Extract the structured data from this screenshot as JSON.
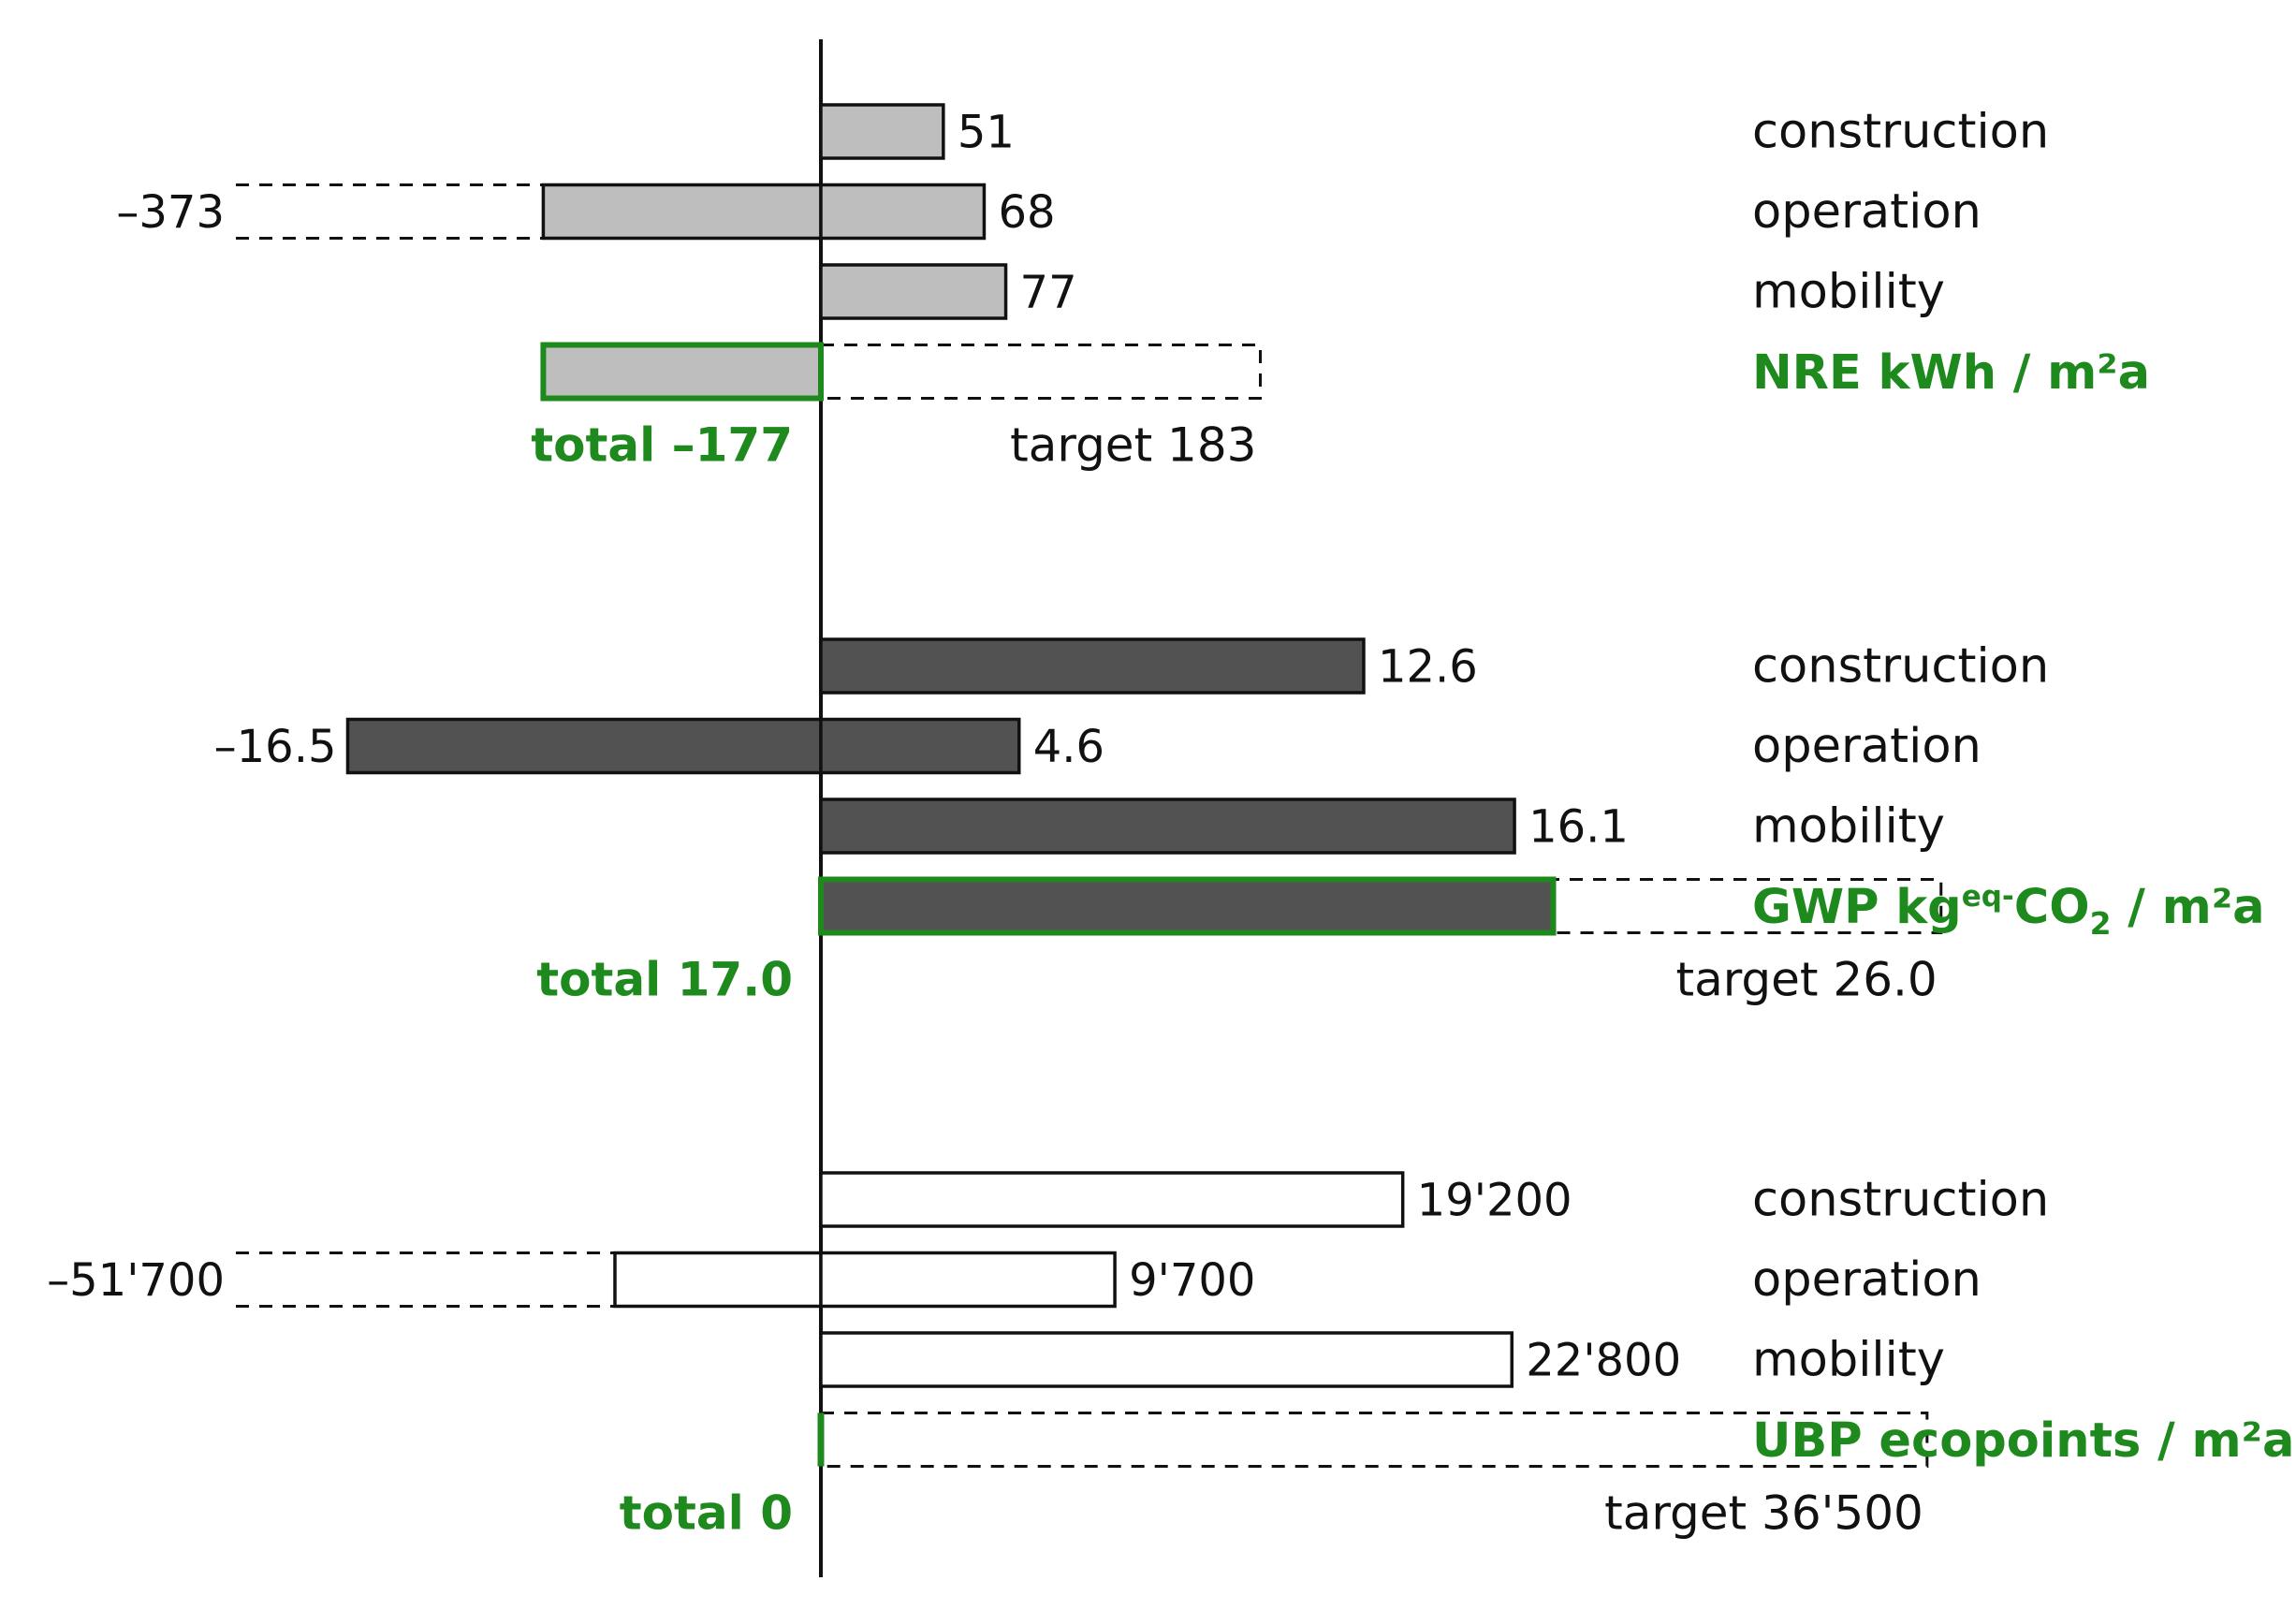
{
  "colors": {
    "nre_fill": "#bebebe",
    "gwp_fill": "#525252",
    "ubp_fill": "#ffffff",
    "stroke": "#111111",
    "accent_green": "#1e8a1e"
  },
  "chart_data": [
    {
      "type": "bar",
      "orientation": "horizontal",
      "unit_label": "NRE kWh / m²a",
      "categories": [
        "construction",
        "operation",
        "mobility"
      ],
      "values": [
        51,
        68,
        77
      ],
      "value_labels": [
        "51",
        "68",
        "77"
      ],
      "negative": {
        "category": "operation",
        "value": -373,
        "label": "–373",
        "bar_extent_value": -177
      },
      "total": {
        "value": -177,
        "label": "total –177"
      },
      "target": {
        "value": 183,
        "label": "target 183"
      },
      "xlim": [
        -373,
        366
      ]
    },
    {
      "type": "bar",
      "orientation": "horizontal",
      "unit_label": "GWP kgeq-CO2 / m²a",
      "unit_label_parts": {
        "prefix": "GWP kg",
        "sup": "eq-",
        "mid": "CO",
        "sub": "2",
        "suffix": " / m²a"
      },
      "categories": [
        "construction",
        "operation",
        "mobility"
      ],
      "values": [
        12.6,
        4.6,
        16.1
      ],
      "value_labels": [
        "12.6",
        "4.6",
        "16.1"
      ],
      "negative": {
        "category": "operation",
        "value": -16.5,
        "label": "–16.5",
        "bar_extent_value": -16.5
      },
      "total": {
        "value": 17.0,
        "label": "total 17.0"
      },
      "target": {
        "value": 26.0,
        "label": "target 26.0"
      },
      "xlim": [
        -20.4,
        20.4
      ]
    },
    {
      "type": "bar",
      "orientation": "horizontal",
      "unit_label": "UBP ecopoints / m²a",
      "categories": [
        "construction",
        "operation",
        "mobility"
      ],
      "values": [
        19200,
        9700,
        22800
      ],
      "value_labels": [
        "19'200",
        "9'700",
        "22'800"
      ],
      "negative": {
        "category": "operation",
        "value": -51700,
        "label": "–51'700",
        "bar_extent_value": -18200
      },
      "total": {
        "value": 0,
        "label": "total 0"
      },
      "target": {
        "value": 36500,
        "label": "target 36'500"
      },
      "xlim": [
        -51700,
        29000
      ]
    }
  ]
}
